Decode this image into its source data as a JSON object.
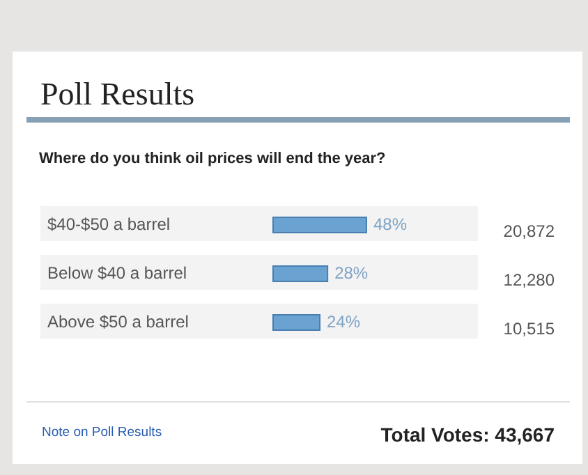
{
  "chart_data": {
    "type": "bar",
    "orientation": "horizontal",
    "title": "Poll Results",
    "subtitle": "Where do you think oil prices will end the year?",
    "categories": [
      "$40-$50 a barrel",
      "Below $40 a barrel",
      "Above $50 a barrel"
    ],
    "values": [
      48,
      28,
      24
    ],
    "value_labels": [
      "48%",
      "28%",
      "24%"
    ],
    "color": "#6aa2d2",
    "bands": [
      {
        "axis": "y",
        "from": "$40-$50 a barrel",
        "to": "$40-$50 a barrel",
        "color": "#f3f3f3"
      },
      {
        "axis": "y",
        "from": "Below $40 a barrel",
        "to": "Below $40 a barrel",
        "color": "#f3f3f3"
      },
      {
        "axis": "y",
        "from": "Above $50 a barrel",
        "to": "Above $50 a barrel",
        "color": "#f3f3f3"
      }
    ],
    "annotations": [
      "20,872",
      "12,280",
      "10,515",
      "Note on Poll Results",
      "Total Votes: 43,667"
    ]
  }
}
